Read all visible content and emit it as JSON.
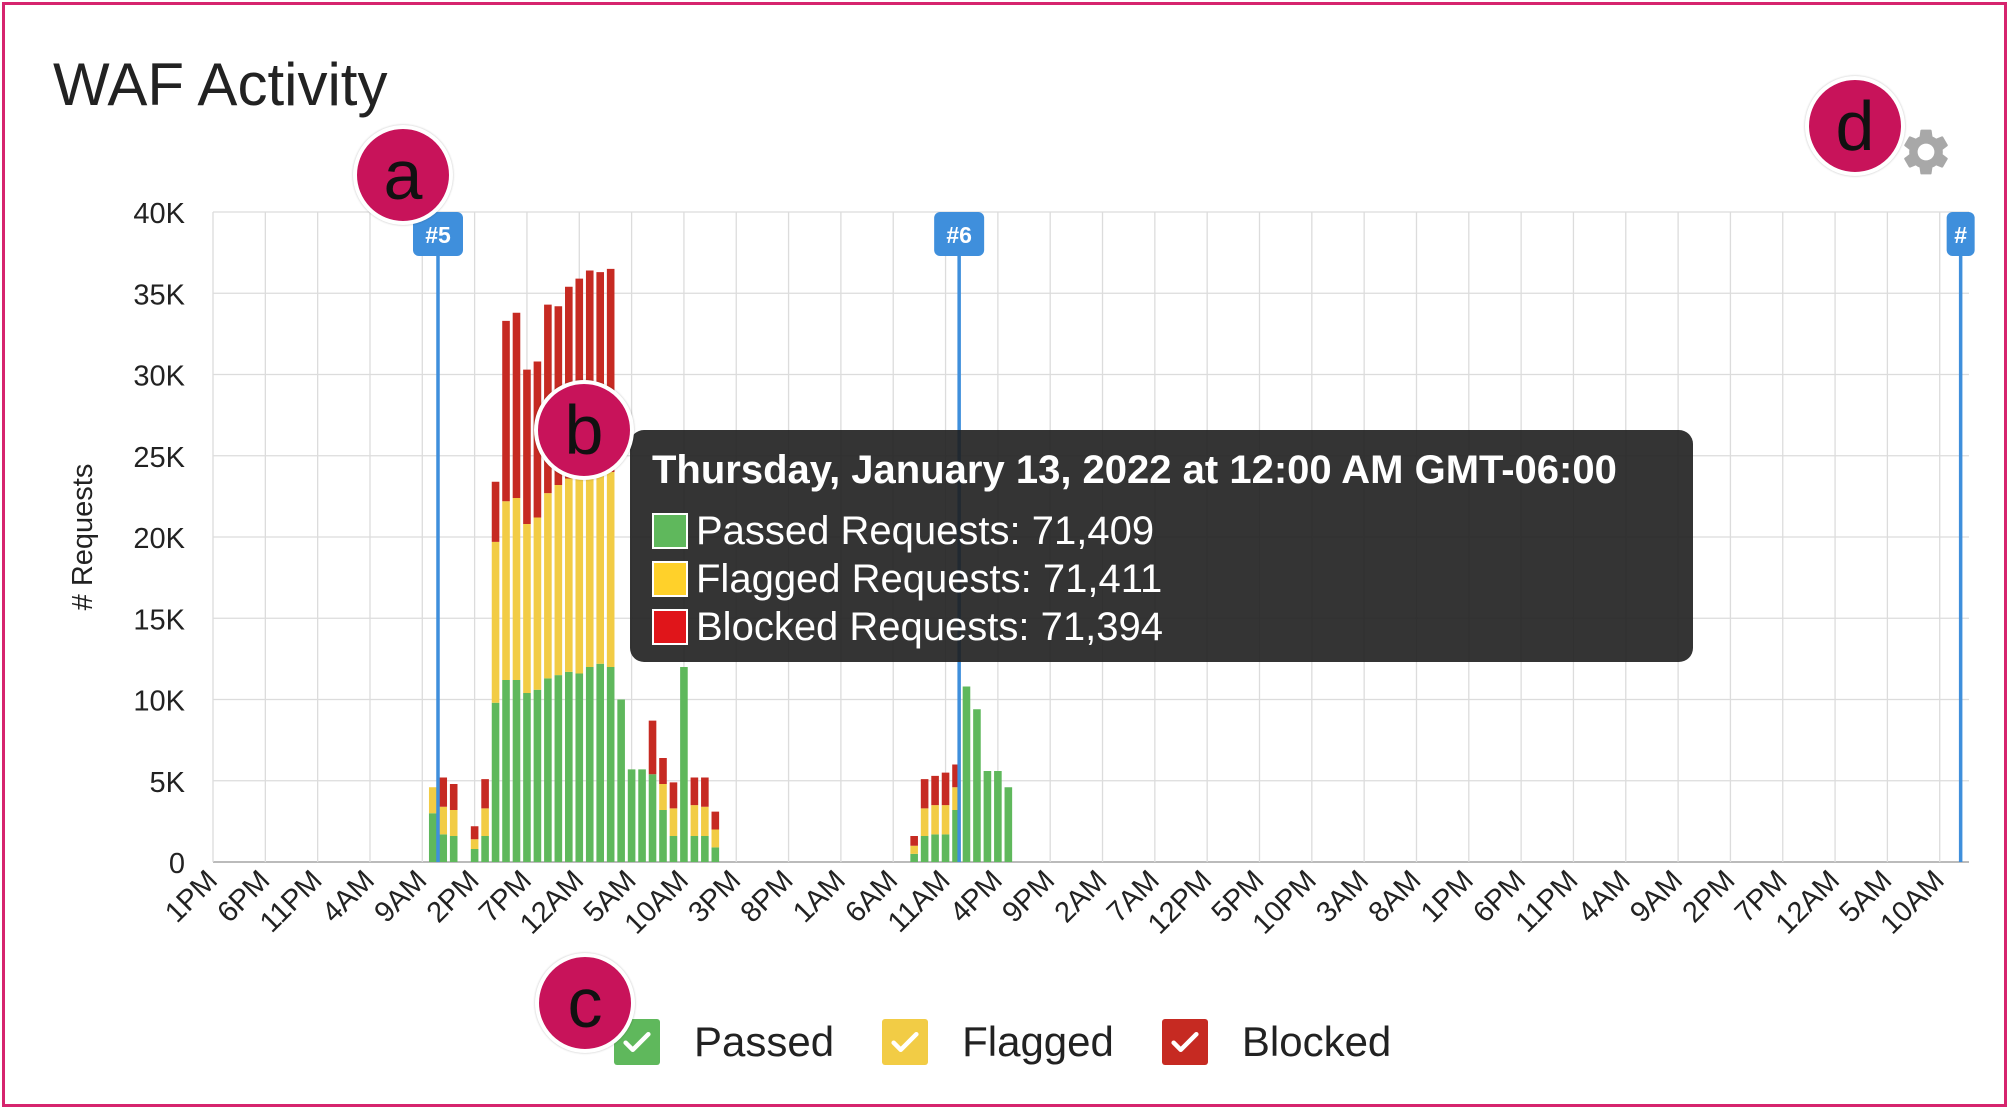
{
  "title": "WAF Activity",
  "settings_icon": "gear-icon",
  "annotations": [
    "a",
    "b",
    "c",
    "d"
  ],
  "colors": {
    "passed": "#5fb85c",
    "flagged": "#f2cc45",
    "blocked": "#c62a22",
    "marker": "#3f8fdc",
    "badge": "#c8135a",
    "frame": "#d6246e"
  },
  "tooltip": {
    "title": "Thursday, January 13, 2022 at 12:00 AM GMT-06:00",
    "rows": [
      {
        "label": "Passed Requests: 71,409",
        "color": "#5fb85c"
      },
      {
        "label": "Flagged Requests: 71,411",
        "color": "#ffd12a"
      },
      {
        "label": "Blocked Requests: 71,394",
        "color": "#e0151a"
      }
    ]
  },
  "legend": [
    {
      "label": "Passed",
      "color": "#5fb85c"
    },
    {
      "label": "Flagged",
      "color": "#f2cc45"
    },
    {
      "label": "Blocked",
      "color": "#c62a22"
    }
  ],
  "chart_data": {
    "type": "bar",
    "stacked": true,
    "ylabel": "# Requests",
    "ylim": [
      0,
      40000
    ],
    "yticks": [
      "0",
      "5K",
      "10K",
      "15K",
      "20K",
      "25K",
      "30K",
      "35K",
      "40K"
    ],
    "xlabels": [
      "1PM",
      "6PM",
      "11PM",
      "4AM",
      "9AM",
      "2PM",
      "7PM",
      "12AM",
      "5AM",
      "10AM",
      "3PM",
      "8PM",
      "1AM",
      "6AM",
      "11AM",
      "4PM",
      "9PM",
      "2AM",
      "7AM",
      "12PM",
      "5PM",
      "10PM",
      "3AM",
      "8AM",
      "1PM",
      "6PM",
      "11PM",
      "4AM",
      "9AM",
      "2PM",
      "7PM",
      "12AM",
      "5AM",
      "10AM"
    ],
    "x_unit": "hours since 1PM (bars every 1 hour)",
    "grid": true,
    "legend_position": "bottom-center",
    "markers": [
      {
        "label": "#5",
        "x": 21.5
      },
      {
        "label": "#6",
        "x": 71.3
      },
      {
        "label": "#",
        "x": 167
      }
    ],
    "series": [
      {
        "name": "Passed",
        "color": "#5fb85c",
        "points": [
          [
            21,
            3000
          ],
          [
            22,
            1700
          ],
          [
            23,
            1600
          ],
          [
            25,
            800
          ],
          [
            26,
            1600
          ],
          [
            27,
            9800
          ],
          [
            28,
            11200
          ],
          [
            29,
            11200
          ],
          [
            30,
            10400
          ],
          [
            31,
            10600
          ],
          [
            32,
            11300
          ],
          [
            33,
            11500
          ],
          [
            34,
            11700
          ],
          [
            35,
            11600
          ],
          [
            36,
            12000
          ],
          [
            37,
            12200
          ],
          [
            38,
            12000
          ],
          [
            39,
            10000
          ],
          [
            40,
            5700
          ],
          [
            41,
            5700
          ],
          [
            42,
            5400
          ],
          [
            43,
            3200
          ],
          [
            44,
            1600
          ],
          [
            45,
            12000
          ],
          [
            46,
            1600
          ],
          [
            47,
            1600
          ],
          [
            48,
            900
          ],
          [
            67,
            500
          ],
          [
            68,
            1600
          ],
          [
            69,
            1700
          ],
          [
            70,
            1700
          ],
          [
            71,
            3200
          ],
          [
            72,
            10800
          ],
          [
            73,
            9400
          ],
          [
            74,
            5600
          ],
          [
            75,
            5600
          ],
          [
            76,
            4600
          ]
        ]
      },
      {
        "name": "Flagged",
        "color": "#f2cc45",
        "points": [
          [
            21,
            1600
          ],
          [
            22,
            1700
          ],
          [
            23,
            1600
          ],
          [
            25,
            600
          ],
          [
            26,
            1700
          ],
          [
            27,
            9900
          ],
          [
            28,
            11000
          ],
          [
            29,
            11200
          ],
          [
            30,
            10400
          ],
          [
            31,
            10600
          ],
          [
            32,
            11400
          ],
          [
            33,
            11700
          ],
          [
            34,
            11900
          ],
          [
            35,
            12500
          ],
          [
            36,
            12300
          ],
          [
            37,
            12300
          ],
          [
            38,
            12000
          ],
          [
            39,
            0
          ],
          [
            40,
            0
          ],
          [
            41,
            0
          ],
          [
            42,
            0
          ],
          [
            43,
            1600
          ],
          [
            44,
            1700
          ],
          [
            45,
            0
          ],
          [
            46,
            1900
          ],
          [
            47,
            1800
          ],
          [
            48,
            1100
          ],
          [
            67,
            500
          ],
          [
            68,
            1700
          ],
          [
            69,
            1800
          ],
          [
            70,
            1800
          ],
          [
            71,
            1400
          ],
          [
            72,
            0
          ],
          [
            73,
            0
          ],
          [
            74,
            0
          ],
          [
            75,
            0
          ],
          [
            76,
            0
          ]
        ]
      },
      {
        "name": "Blocked",
        "color": "#c62a22",
        "points": [
          [
            21,
            0
          ],
          [
            22,
            1800
          ],
          [
            23,
            1600
          ],
          [
            25,
            800
          ],
          [
            26,
            1800
          ],
          [
            27,
            3700
          ],
          [
            28,
            11100
          ],
          [
            29,
            11400
          ],
          [
            30,
            9500
          ],
          [
            31,
            9600
          ],
          [
            32,
            11600
          ],
          [
            33,
            11000
          ],
          [
            34,
            11800
          ],
          [
            35,
            11800
          ],
          [
            36,
            12100
          ],
          [
            37,
            11800
          ],
          [
            38,
            12500
          ],
          [
            39,
            0
          ],
          [
            40,
            0
          ],
          [
            41,
            0
          ],
          [
            42,
            3300
          ],
          [
            43,
            1600
          ],
          [
            44,
            1600
          ],
          [
            45,
            0
          ],
          [
            46,
            1700
          ],
          [
            47,
            1800
          ],
          [
            48,
            1100
          ],
          [
            67,
            600
          ],
          [
            68,
            1800
          ],
          [
            69,
            1800
          ],
          [
            70,
            2000
          ],
          [
            71,
            1400
          ],
          [
            72,
            0
          ],
          [
            73,
            0
          ],
          [
            74,
            0
          ],
          [
            75,
            0
          ],
          [
            76,
            0
          ]
        ]
      }
    ]
  }
}
